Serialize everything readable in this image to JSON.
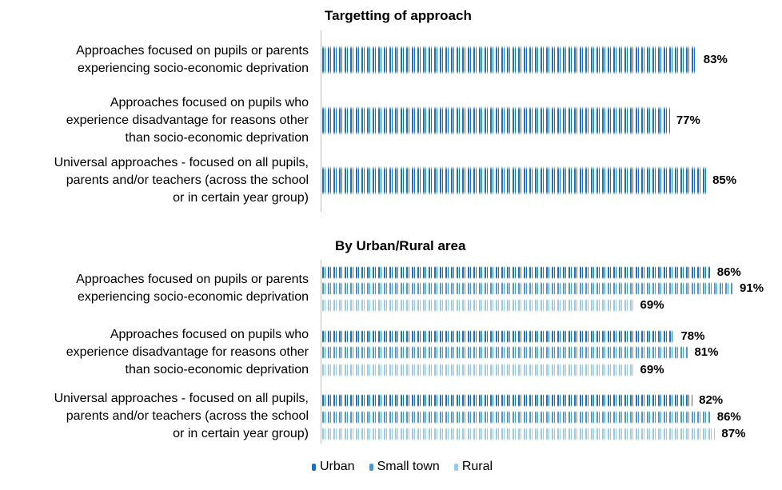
{
  "chart_data": [
    {
      "type": "bar",
      "orientation": "horizontal",
      "title": "Targetting of approach",
      "categories": [
        "Approaches focused on pupils or parents experiencing socio-economic deprivation",
        "Approaches focused on pupils who experience disadvantage for reasons other than socio-economic deprivation",
        "Universal approaches - focused on all pupils, parents and/or teachers (across the school or in certain year group)"
      ],
      "category_lines": [
        [
          "Approaches focused on pupils or parents",
          "experiencing socio-economic deprivation"
        ],
        [
          "Approaches focused on pupils who",
          "experience disadvantage for reasons other",
          "than socio-economic deprivation"
        ],
        [
          "Universal approaches - focused on all pupils,",
          "parents and/or teachers (across the school",
          "or in certain year group)"
        ]
      ],
      "values": [
        83,
        77,
        85
      ],
      "value_labels": [
        "83%",
        "77%",
        "85%"
      ],
      "color": "#1a6fbf",
      "xlim": [
        0,
        100
      ]
    },
    {
      "type": "bar",
      "orientation": "horizontal",
      "title": "By Urban/Rural area",
      "categories": [
        "Approaches focused on pupils or parents experiencing socio-economic deprivation",
        "Approaches focused on pupils who experience disadvantage for reasons other than socio-economic deprivation",
        "Universal approaches - focused on all pupils, parents and/or teachers (across the school or in certain year group)"
      ],
      "category_lines": [
        [
          "Approaches focused on pupils or parents",
          "experiencing socio-economic deprivation"
        ],
        [
          "Approaches focused on pupils who",
          "experience disadvantage for reasons other",
          "than socio-economic deprivation"
        ],
        [
          "Universal approaches - focused on all pupils,",
          "parents and/or teachers (across the school",
          "or in certain year group)"
        ]
      ],
      "series": [
        {
          "name": "Urban",
          "values": [
            86,
            78,
            82
          ],
          "labels": [
            "86%",
            "78%",
            "82%"
          ],
          "color": "#1a6fbf"
        },
        {
          "name": "Small town",
          "values": [
            91,
            81,
            86
          ],
          "labels": [
            "91%",
            "81%",
            "86%"
          ],
          "color": "#4a97d3"
        },
        {
          "name": "Rural",
          "values": [
            69,
            69,
            87
          ],
          "labels": [
            "69%",
            "69%",
            "87%"
          ],
          "color": "#9cc8e8"
        }
      ],
      "legend": "bottom",
      "xlim": [
        0,
        100
      ]
    }
  ]
}
